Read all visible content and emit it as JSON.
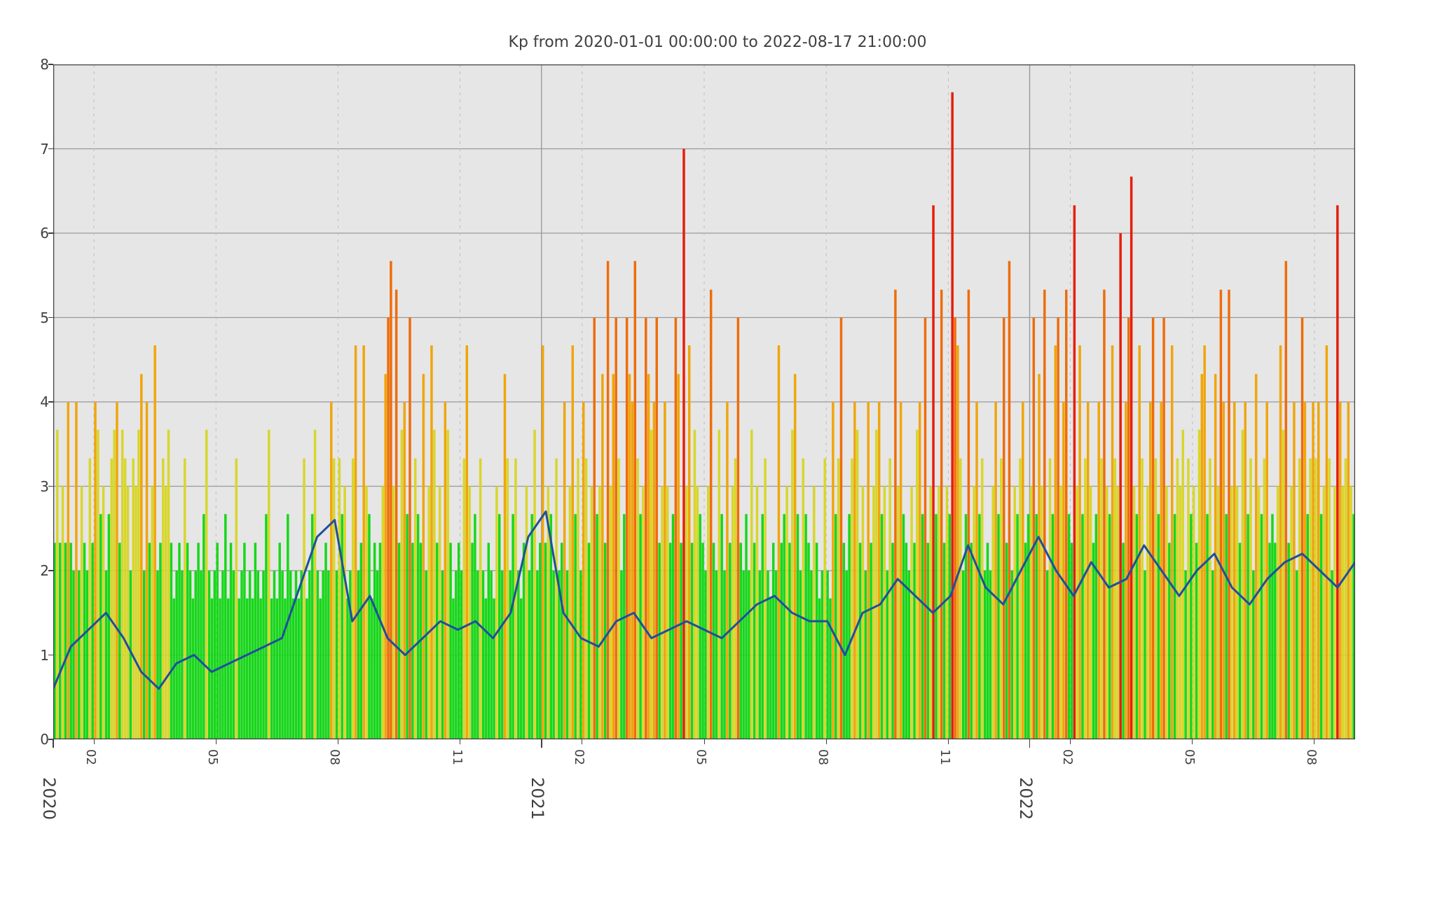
{
  "chart": {
    "type": "bar+line",
    "title": "Kp from 2020-01-01 00:00:00 to 2022-08-17 21:00:00",
    "title_fontsize": 22,
    "title_color": "#404040",
    "plot_bg": "#e6e6e6",
    "page_bg": "#ffffff",
    "axis_color": "#404040",
    "grid_major_color": "#9a9a9a",
    "grid_minor_color": "#bdbdbd",
    "grid_major_width": 1.2,
    "grid_minor_dash": "4 6",
    "ylim": [
      0,
      8
    ],
    "ytick_step": 1,
    "ytick_fontsize": 20,
    "xtick_minor_fontsize": 18,
    "xtick_major_fontsize": 24,
    "x_start_month": 0,
    "x_end_month": 32,
    "years": [
      {
        "label": "2020",
        "month_index": 0
      },
      {
        "label": "2021",
        "month_index": 12
      },
      {
        "label": "2022",
        "month_index": 24
      }
    ],
    "minor_month_labels": [
      "02",
      "05",
      "08",
      "11"
    ],
    "minor_month_offsets": [
      1,
      4,
      7,
      10
    ],
    "minor_years_shown": [
      0,
      12,
      24
    ],
    "bar_color_map": {
      "thresholds": [
        3.0,
        4.0,
        5.0,
        6.0
      ],
      "colors": [
        "#17d71a",
        "#d8d62a",
        "#f0a50a",
        "#ef6c0a",
        "#e71d0a"
      ]
    },
    "bars_per_month": 15,
    "line_color": "#1f4f9c",
    "line_width": 3.0,
    "seed": 20200101,
    "kp_values_monthly_profile": [
      [
        2.33,
        3.67,
        2.33,
        3.0,
        2.33,
        4.0,
        2.33,
        2.0,
        4.0,
        2.0,
        3.0,
        2.33,
        2.0,
        3.33,
        2.33
      ],
      [
        4.0,
        3.67,
        2.67,
        3.0,
        2.0,
        2.67,
        3.33,
        3.67,
        4.0,
        2.33,
        3.67,
        3.33,
        3.0,
        2.0,
        3.33
      ],
      [
        3.0,
        3.67,
        4.33,
        2.0,
        4.0,
        2.33,
        3.0,
        4.67,
        2.0,
        2.33,
        3.33,
        3.0,
        3.67,
        2.33,
        1.67
      ],
      [
        2.0,
        2.33,
        2.0,
        3.33,
        2.33,
        2.0,
        1.67,
        2.0,
        2.33,
        2.0,
        2.67,
        3.67,
        2.0,
        1.67,
        2.0
      ],
      [
        2.33,
        1.67,
        2.0,
        2.67,
        1.67,
        2.33,
        2.0,
        3.33,
        1.67,
        2.0,
        2.33,
        1.67,
        2.0,
        1.67,
        2.33
      ],
      [
        2.0,
        1.67,
        2.0,
        2.67,
        3.67,
        1.67,
        2.0,
        1.67,
        2.33,
        2.0,
        1.67,
        2.67,
        2.0,
        1.67,
        2.0
      ],
      [
        1.67,
        2.0,
        3.33,
        1.67,
        2.0,
        2.67,
        3.67,
        2.0,
        1.67,
        2.0,
        2.33,
        2.0,
        4.0,
        3.33,
        2.0
      ],
      [
        3.33,
        2.67,
        3.0,
        1.67,
        2.0,
        3.33,
        4.67,
        2.0,
        2.33,
        4.67,
        3.0,
        2.67,
        1.67,
        2.33,
        2.0
      ],
      [
        2.33,
        3.0,
        4.33,
        5.0,
        5.67,
        3.0,
        5.33,
        2.33,
        3.67,
        4.0,
        2.67,
        5.0,
        2.33,
        3.33,
        2.67
      ],
      [
        2.33,
        4.33,
        2.0,
        3.0,
        4.67,
        3.67,
        2.33,
        3.0,
        2.0,
        4.0,
        3.67,
        2.33,
        1.67,
        2.0,
        2.33
      ],
      [
        2.0,
        3.33,
        4.67,
        3.0,
        2.33,
        2.67,
        2.0,
        3.33,
        2.0,
        1.67,
        2.33,
        2.0,
        1.67,
        3.0,
        2.67
      ],
      [
        2.0,
        4.33,
        3.33,
        2.0,
        2.67,
        3.33,
        2.0,
        1.67,
        2.33,
        3.0,
        2.0,
        2.67,
        3.67,
        2.0,
        2.33
      ],
      [
        4.67,
        2.33,
        3.0,
        2.67,
        2.0,
        3.33,
        2.0,
        2.33,
        4.0,
        2.0,
        3.0,
        4.67,
        2.67,
        3.33,
        2.0
      ],
      [
        4.0,
        3.33,
        2.33,
        3.0,
        5.0,
        2.67,
        3.0,
        4.33,
        2.33,
        5.67,
        3.0,
        4.33,
        5.0,
        3.33,
        2.0
      ],
      [
        2.67,
        5.0,
        4.33,
        4.0,
        5.67,
        3.33,
        2.67,
        3.0,
        5.0,
        4.33,
        3.67,
        4.0,
        5.0,
        2.33,
        3.0
      ],
      [
        4.0,
        3.0,
        2.33,
        2.67,
        5.0,
        4.33,
        2.33,
        7.0,
        3.0,
        4.67,
        2.33,
        3.67,
        3.0,
        2.67,
        2.33
      ],
      [
        2.0,
        3.0,
        5.33,
        2.33,
        2.0,
        3.67,
        2.67,
        2.0,
        4.0,
        2.33,
        3.0,
        3.33,
        5.0,
        2.33,
        2.0
      ],
      [
        2.67,
        2.0,
        3.67,
        2.33,
        3.0,
        2.0,
        2.67,
        3.33,
        2.0,
        1.67,
        2.33,
        2.0,
        4.67,
        2.33,
        2.67
      ],
      [
        3.0,
        2.33,
        3.67,
        4.33,
        2.67,
        2.0,
        3.33,
        2.67,
        2.33,
        2.0,
        3.0,
        2.33,
        1.67,
        2.0,
        3.33
      ],
      [
        2.0,
        1.67,
        4.0,
        2.67,
        3.33,
        5.0,
        2.33,
        2.0,
        2.67,
        3.33,
        4.0,
        3.67,
        2.33,
        3.0,
        2.0
      ],
      [
        4.0,
        2.33,
        3.0,
        3.67,
        4.0,
        2.67,
        3.0,
        2.0,
        3.33,
        2.33,
        5.33,
        3.0,
        4.0,
        2.67,
        2.33
      ],
      [
        2.0,
        3.0,
        2.33,
        3.67,
        4.0,
        2.67,
        5.0,
        2.33,
        3.0,
        6.33,
        2.67,
        3.0,
        5.33,
        2.33,
        3.0
      ],
      [
        2.67,
        7.67,
        5.0,
        4.67,
        3.33,
        2.0,
        2.67,
        5.33,
        2.33,
        3.0,
        4.0,
        2.67,
        3.33,
        2.0,
        2.33
      ],
      [
        2.0,
        3.0,
        4.0,
        2.67,
        3.33,
        5.0,
        2.33,
        5.67,
        2.0,
        3.0,
        2.67,
        3.33,
        4.0,
        2.33,
        2.67
      ],
      [
        3.0,
        5.0,
        2.67,
        4.33,
        3.0,
        5.33,
        2.0,
        3.33,
        2.67,
        4.67,
        5.0,
        3.0,
        4.0,
        5.33,
        2.67
      ],
      [
        2.33,
        6.33,
        3.0,
        4.67,
        2.67,
        3.33,
        4.0,
        3.0,
        2.33,
        2.67,
        4.0,
        3.33,
        5.33,
        3.0,
        2.67
      ],
      [
        4.67,
        3.33,
        3.0,
        6.0,
        2.33,
        4.0,
        5.0,
        6.67,
        3.0,
        2.67,
        4.67,
        3.33,
        2.0,
        3.0,
        4.0
      ],
      [
        5.0,
        3.33,
        2.67,
        4.0,
        5.0,
        3.0,
        2.33,
        4.67,
        2.67,
        3.33,
        3.0,
        3.67,
        2.0,
        3.33,
        2.67
      ],
      [
        3.0,
        2.33,
        3.67,
        4.33,
        4.67,
        2.67,
        3.33,
        2.0,
        4.33,
        3.0,
        5.33,
        4.0,
        2.67,
        5.33,
        3.0
      ],
      [
        4.0,
        3.0,
        2.33,
        3.67,
        4.0,
        2.67,
        3.33,
        2.0,
        4.33,
        3.0,
        2.67,
        3.33,
        4.0,
        2.33,
        2.67
      ],
      [
        2.33,
        3.0,
        4.67,
        3.67,
        5.67,
        2.33,
        3.0,
        4.0,
        2.0,
        3.33,
        5.0,
        4.0,
        2.67,
        3.33,
        4.0
      ],
      [
        3.33,
        4.0,
        2.67,
        3.0,
        4.67,
        3.33,
        2.0,
        3.0,
        6.33,
        4.0,
        3.0,
        3.33,
        4.0,
        3.0,
        2.67
      ]
    ],
    "line_monthly": [
      0.6,
      1.1,
      1.3,
      1.5,
      1.2,
      0.8,
      0.6,
      0.9,
      1.0,
      0.8,
      0.9,
      1.0,
      1.1,
      1.2,
      1.8,
      2.4,
      2.6,
      1.4,
      1.7,
      1.2,
      1.0,
      1.2,
      1.4,
      1.3,
      1.4,
      1.2,
      1.5,
      2.4,
      2.7,
      1.5,
      1.2,
      1.1,
      1.4,
      1.5,
      1.2,
      1.3,
      1.4,
      1.3,
      1.2,
      1.4,
      1.6,
      1.7,
      1.5,
      1.4,
      1.4,
      1.0,
      1.5,
      1.6,
      1.9,
      1.7,
      1.5,
      1.7,
      2.3,
      1.8,
      1.6,
      2.0,
      2.4,
      2.0,
      1.7,
      2.1,
      1.8,
      1.9,
      2.3,
      2.0,
      1.7,
      2.0,
      2.2,
      1.8,
      1.6,
      1.9,
      2.1,
      2.2,
      2.0,
      1.8,
      2.1
    ],
    "line_points_per_month": 2.3
  }
}
